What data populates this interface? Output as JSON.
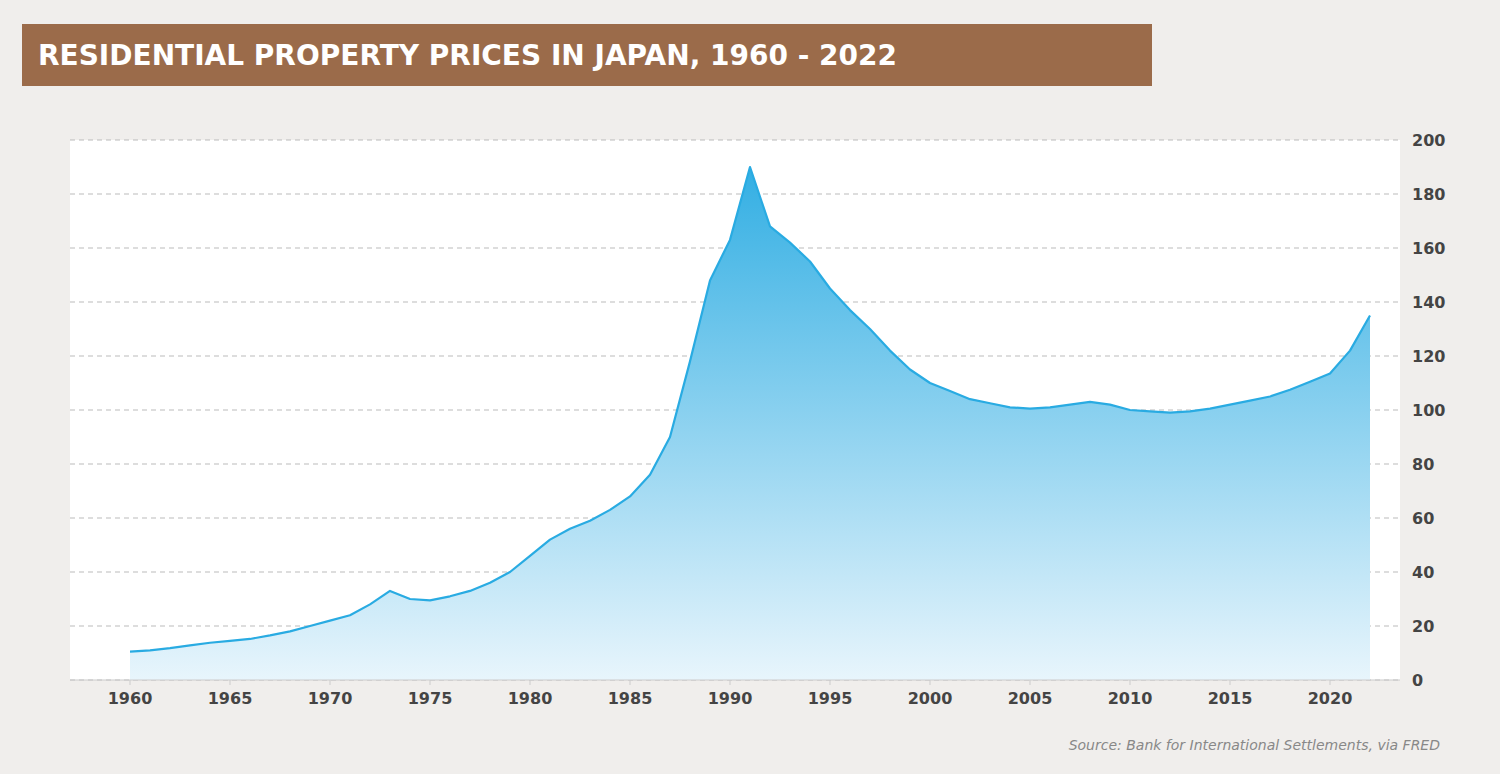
{
  "chart_data": {
    "type": "area",
    "title": "RESIDENTIAL PROPERTY PRICES IN JAPAN, 1960 - 2022",
    "source": "Source: Bank for International Settlements, via FRED",
    "color": "#29ABE2",
    "grid": true,
    "xlim": [
      1957,
      2023.5
    ],
    "xticks": [
      1960,
      1965,
      1970,
      1975,
      1980,
      1985,
      1990,
      1995,
      2000,
      2005,
      2010,
      2015,
      2020
    ],
    "ylim": [
      0,
      200
    ],
    "yticks": [
      0,
      20,
      40,
      60,
      80,
      100,
      120,
      140,
      160,
      180,
      200
    ],
    "x": [
      1960,
      1961,
      1962,
      1963,
      1964,
      1965,
      1966,
      1967,
      1968,
      1969,
      1970,
      1971,
      1972,
      1973,
      1974,
      1975,
      1976,
      1977,
      1978,
      1979,
      1980,
      1981,
      1982,
      1983,
      1984,
      1985,
      1986,
      1987,
      1988,
      1989,
      1990,
      1991,
      1992,
      1993,
      1994,
      1995,
      1996,
      1997,
      1998,
      1999,
      2000,
      2001,
      2002,
      2003,
      2004,
      2005,
      2006,
      2007,
      2008,
      2009,
      2010,
      2011,
      2012,
      2013,
      2014,
      2015,
      2016,
      2017,
      2018,
      2019,
      2020,
      2021,
      2022
    ],
    "values": [
      10.5,
      11.0,
      11.8,
      12.8,
      13.8,
      14.5,
      15.2,
      16.5,
      18.0,
      20.0,
      22.0,
      24.0,
      28.0,
      33.0,
      30.0,
      29.5,
      31.0,
      33.0,
      36.0,
      40.0,
      46.0,
      52.0,
      56.0,
      59.0,
      63.0,
      68.0,
      76.0,
      90.0,
      118.0,
      148.0,
      163.0,
      190.0,
      168.0,
      162.0,
      155.0,
      145.0,
      137.0,
      130.0,
      122.0,
      115.0,
      110.0,
      107.0,
      104.0,
      102.5,
      101.0,
      100.5,
      101.0,
      102.0,
      103.0,
      102.0,
      100.0,
      99.5,
      99.0,
      99.5,
      100.5,
      102.0,
      103.5,
      105.0,
      107.5,
      110.5,
      113.5,
      122.0,
      135.0
    ]
  }
}
